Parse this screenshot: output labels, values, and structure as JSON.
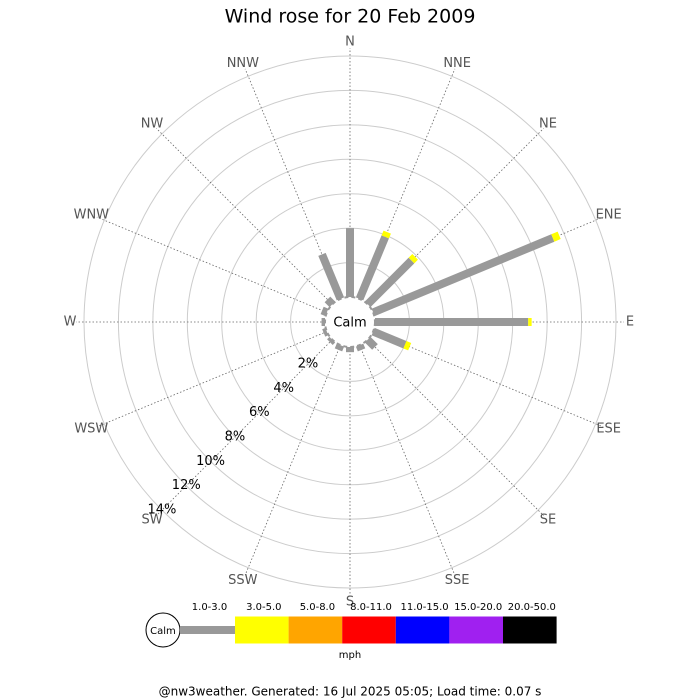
{
  "chart_data": {
    "type": "windrose",
    "title": "Wind rose for 20 Feb 2009",
    "categories": [
      "N",
      "NNE",
      "NE",
      "ENE",
      "E",
      "ESE",
      "SE",
      "SSE",
      "S",
      "SSW",
      "SW",
      "WSW",
      "W",
      "WNW",
      "NW",
      "NNW"
    ],
    "calm_label": "Calm",
    "series": [
      {
        "name": "1.0-3.0",
        "color": "#999999",
        "values": [
          4.0,
          3.9,
          3.6,
          11.3,
          8.9,
          2.0,
          0.6,
          0.3,
          0.3,
          0.3,
          0.2,
          0.2,
          0.2,
          0.3,
          0.4,
          2.8
        ]
      },
      {
        "name": "3.0-5.0",
        "color": "#ffff00",
        "values": [
          0,
          0.3,
          0.3,
          0.4,
          0.2,
          0.3,
          0,
          0,
          0,
          0,
          0,
          0,
          0,
          0,
          0,
          0
        ]
      },
      {
        "name": "5.0-8.0",
        "color": "#ffa500",
        "values": [
          0,
          0,
          0,
          0,
          0,
          0,
          0,
          0,
          0,
          0,
          0,
          0,
          0,
          0,
          0,
          0
        ]
      },
      {
        "name": "8.0-11.0",
        "color": "#ff0000",
        "values": [
          0,
          0,
          0,
          0,
          0,
          0,
          0,
          0,
          0,
          0,
          0,
          0,
          0,
          0,
          0,
          0
        ]
      },
      {
        "name": "11.0-15.0",
        "color": "#0000ff",
        "values": [
          0,
          0,
          0,
          0,
          0,
          0,
          0,
          0,
          0,
          0,
          0,
          0,
          0,
          0,
          0,
          0
        ]
      },
      {
        "name": "15.0-20.0",
        "color": "#a020f0",
        "values": [
          0,
          0,
          0,
          0,
          0,
          0,
          0,
          0,
          0,
          0,
          0,
          0,
          0,
          0,
          0,
          0
        ]
      },
      {
        "name": "20.0-50.0",
        "color": "#000000",
        "values": [
          0,
          0,
          0,
          0,
          0,
          0,
          0,
          0,
          0,
          0,
          0,
          0,
          0,
          0,
          0,
          0
        ]
      }
    ],
    "rlim": [
      0,
      14
    ],
    "rticks": [
      {
        "value": 2,
        "label": "2%"
      },
      {
        "value": 4,
        "label": "4%"
      },
      {
        "value": 6,
        "label": "6%"
      },
      {
        "value": 8,
        "label": "8%"
      },
      {
        "value": 10,
        "label": "10%"
      },
      {
        "value": 12,
        "label": "12%"
      },
      {
        "value": 14,
        "label": "14%"
      }
    ],
    "unit": "mph",
    "footer": "@nw3weather. Generated: 16 Jul 2025 05:05; Load time: 0.07 s"
  }
}
